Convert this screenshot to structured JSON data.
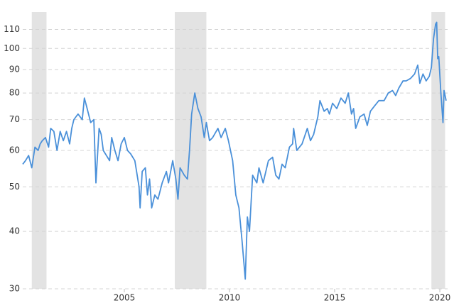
{
  "chart_data": {
    "type": "line",
    "color": "#4a90d9",
    "recession_color": "#e3e3e3",
    "log_y": true,
    "grid": true,
    "ylim": [
      30,
      120
    ],
    "yticks": [
      30,
      40,
      50,
      60,
      70,
      80,
      90,
      100,
      110
    ],
    "xlim": [
      2000.17,
      2020.37
    ],
    "xticks": [
      2005,
      2010,
      2015,
      2020
    ],
    "recessions": [
      [
        2000.6,
        2001.3
      ],
      [
        2007.4,
        2008.9
      ],
      [
        2019.6,
        2020.25
      ]
    ],
    "x": [
      2000.17,
      2000.3,
      2000.45,
      2000.6,
      2000.75,
      2000.9,
      2001.0,
      2001.1,
      2001.25,
      2001.4,
      2001.5,
      2001.65,
      2001.8,
      2001.95,
      2002.1,
      2002.25,
      2002.4,
      2002.5,
      2002.6,
      2002.7,
      2002.8,
      2003.0,
      2003.1,
      2003.2,
      2003.4,
      2003.55,
      2003.65,
      2003.8,
      2003.9,
      2004.0,
      2004.3,
      2004.4,
      2004.55,
      2004.7,
      2004.85,
      2005.0,
      2005.15,
      2005.3,
      2005.5,
      2005.7,
      2005.75,
      2005.85,
      2006.0,
      2006.1,
      2006.2,
      2006.3,
      2006.45,
      2006.6,
      2006.8,
      2007.0,
      2007.1,
      2007.3,
      2007.45,
      2007.55,
      2007.65,
      2007.85,
      2008.0,
      2008.1,
      2008.2,
      2008.35,
      2008.5,
      2008.65,
      2008.8,
      2008.9,
      2009.05,
      2009.2,
      2009.45,
      2009.6,
      2009.8,
      2009.95,
      2010.15,
      2010.3,
      2010.45,
      2010.6,
      2010.75,
      2010.85,
      2010.95,
      2011.1,
      2011.3,
      2011.4,
      2011.6,
      2011.85,
      2012.05,
      2012.2,
      2012.35,
      2012.5,
      2012.65,
      2012.85,
      2013.0,
      2013.05,
      2013.2,
      2013.45,
      2013.7,
      2013.85,
      2014.0,
      2014.2,
      2014.3,
      2014.5,
      2014.65,
      2014.75,
      2014.9,
      2015.1,
      2015.3,
      2015.5,
      2015.65,
      2015.8,
      2015.9,
      2016.0,
      2016.2,
      2016.4,
      2016.55,
      2016.7,
      2016.9,
      2017.1,
      2017.35,
      2017.55,
      2017.75,
      2017.9,
      2018.05,
      2018.25,
      2018.4,
      2018.6,
      2018.8,
      2018.95,
      2019.05,
      2019.2,
      2019.35,
      2019.5,
      2019.6,
      2019.7,
      2019.8,
      2019.85,
      2019.9,
      2019.95,
      2020.05,
      2020.15,
      2020.2,
      2020.3
    ],
    "values": [
      56,
      57,
      58.5,
      55,
      61,
      60,
      62,
      63,
      64,
      61,
      67,
      66,
      60,
      66,
      63,
      66,
      62,
      67,
      70,
      71,
      72,
      70,
      78,
      75,
      69,
      70,
      51,
      67,
      65,
      60,
      57,
      64,
      60,
      57,
      62,
      64,
      60,
      59,
      57,
      50,
      45,
      54,
      55,
      48,
      52,
      45,
      48,
      47,
      51,
      54,
      51,
      57,
      52,
      47,
      55,
      53,
      52,
      60,
      72,
      80,
      74,
      71,
      64,
      69,
      63,
      64,
      67,
      64,
      67,
      63,
      57,
      48,
      45,
      38,
      31.5,
      43,
      40,
      53,
      51,
      55,
      51,
      57,
      58,
      53,
      52,
      56,
      55,
      61,
      62,
      67,
      60,
      62,
      67,
      63,
      65,
      71,
      77,
      73,
      74,
      72,
      76,
      74,
      78,
      76,
      80,
      72,
      74,
      67,
      71,
      72,
      68,
      73,
      75,
      77,
      77,
      80,
      81,
      79,
      82,
      85,
      85,
      86,
      88,
      92,
      84,
      88,
      85,
      87,
      91,
      105,
      113,
      114,
      95,
      96,
      80,
      69,
      81,
      77
    ]
  }
}
